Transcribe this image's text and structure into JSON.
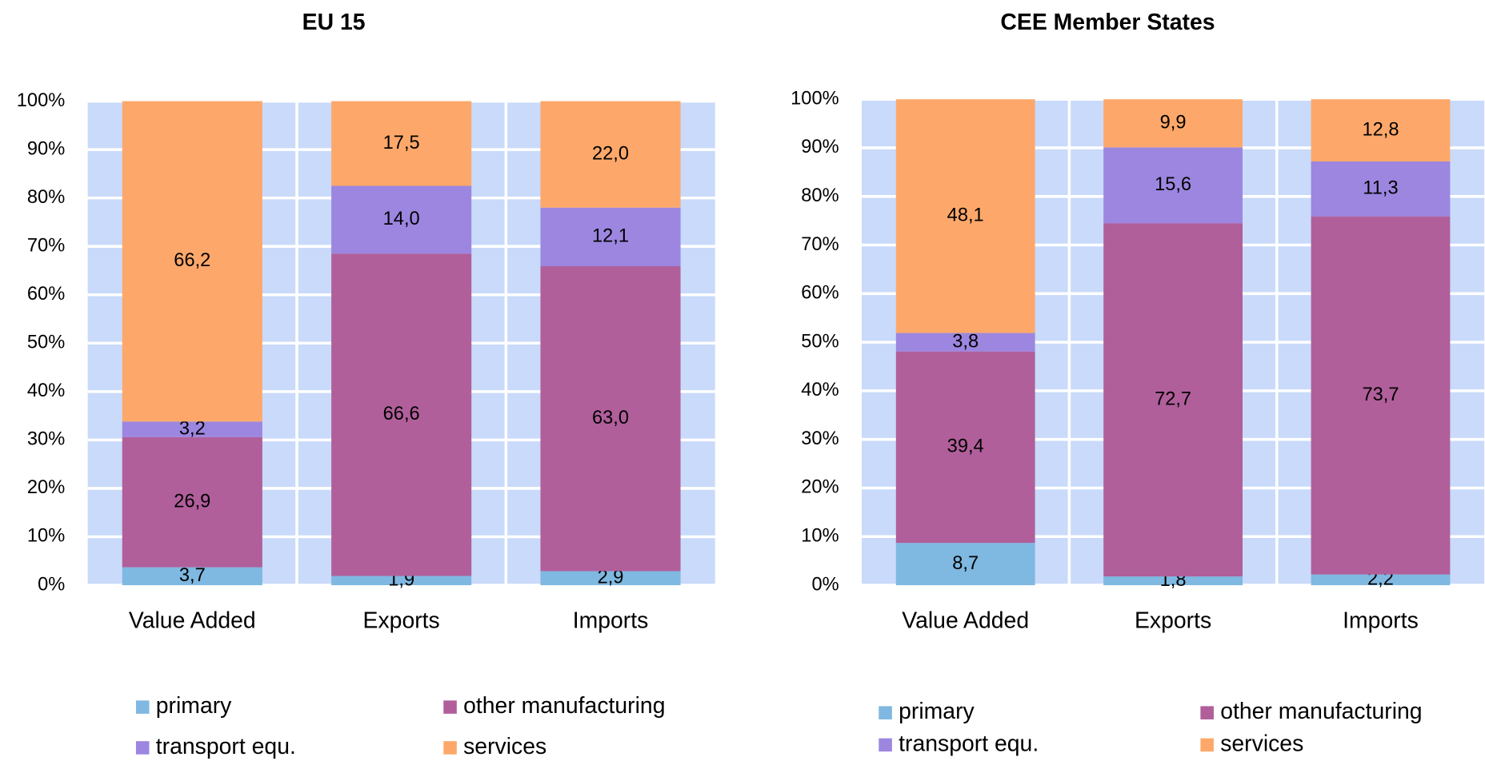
{
  "chart_data": [
    {
      "type": "bar",
      "stacked": true,
      "title": "EU 15",
      "categories": [
        "Value Added",
        "Exports",
        "Imports"
      ],
      "series": [
        {
          "name": "primary",
          "color": "#7fb8e0",
          "values": [
            3.7,
            1.9,
            2.9
          ],
          "value_labels": [
            "3,7",
            "1,9",
            "2,9"
          ]
        },
        {
          "name": "other manufacturing",
          "color": "#b05f9b",
          "values": [
            26.9,
            66.6,
            63.0
          ],
          "value_labels": [
            "26,9",
            "66,6",
            "63,0"
          ]
        },
        {
          "name": "transport equ.",
          "color": "#9c86e0",
          "values": [
            3.2,
            14.0,
            12.1
          ],
          "value_labels": [
            "3,2",
            "14,0",
            "12,1"
          ]
        },
        {
          "name": "services",
          "color": "#fda86a",
          "values": [
            66.2,
            17.5,
            22.0
          ],
          "value_labels": [
            "66,2",
            "17,5",
            "22,0"
          ]
        }
      ],
      "ylim": [
        0,
        100
      ],
      "yticks": [
        {
          "value": 0,
          "label": "0%"
        },
        {
          "value": 10,
          "label": "10%"
        },
        {
          "value": 20,
          "label": "20%"
        },
        {
          "value": 30,
          "label": "30%"
        },
        {
          "value": 40,
          "label": "40%"
        },
        {
          "value": 50,
          "label": "50%"
        },
        {
          "value": 60,
          "label": "60%"
        },
        {
          "value": 70,
          "label": "70%"
        },
        {
          "value": 80,
          "label": "80%"
        },
        {
          "value": 90,
          "label": "90%"
        },
        {
          "value": 100,
          "label": "100%"
        }
      ],
      "grid": true,
      "background": "#c9dafa"
    },
    {
      "type": "bar",
      "stacked": true,
      "title": "CEE Member States",
      "categories": [
        "Value Added",
        "Exports",
        "Imports"
      ],
      "series": [
        {
          "name": "primary",
          "color": "#7fb8e0",
          "values": [
            8.7,
            1.8,
            2.2
          ],
          "value_labels": [
            "8,7",
            "1,8",
            "2,2"
          ]
        },
        {
          "name": "other manufacturing",
          "color": "#b05f9b",
          "values": [
            39.4,
            72.7,
            73.7
          ],
          "value_labels": [
            "39,4",
            "72,7",
            "73,7"
          ]
        },
        {
          "name": "transport equ.",
          "color": "#9c86e0",
          "values": [
            3.8,
            15.6,
            11.3
          ],
          "value_labels": [
            "3,8",
            "15,6",
            "11,3"
          ]
        },
        {
          "name": "services",
          "color": "#fda86a",
          "values": [
            48.1,
            9.9,
            12.8
          ],
          "value_labels": [
            "48,1",
            "9,9",
            "12,8"
          ]
        }
      ],
      "ylim": [
        0,
        100
      ],
      "yticks": [
        {
          "value": 0,
          "label": "0%"
        },
        {
          "value": 10,
          "label": "10%"
        },
        {
          "value": 20,
          "label": "20%"
        },
        {
          "value": 30,
          "label": "30%"
        },
        {
          "value": 40,
          "label": "40%"
        },
        {
          "value": 50,
          "label": "50%"
        },
        {
          "value": 60,
          "label": "60%"
        },
        {
          "value": 70,
          "label": "70%"
        },
        {
          "value": 80,
          "label": "80%"
        },
        {
          "value": 90,
          "label": "90%"
        },
        {
          "value": 100,
          "label": "100%"
        }
      ],
      "grid": true,
      "background": "#c9dafa"
    }
  ]
}
